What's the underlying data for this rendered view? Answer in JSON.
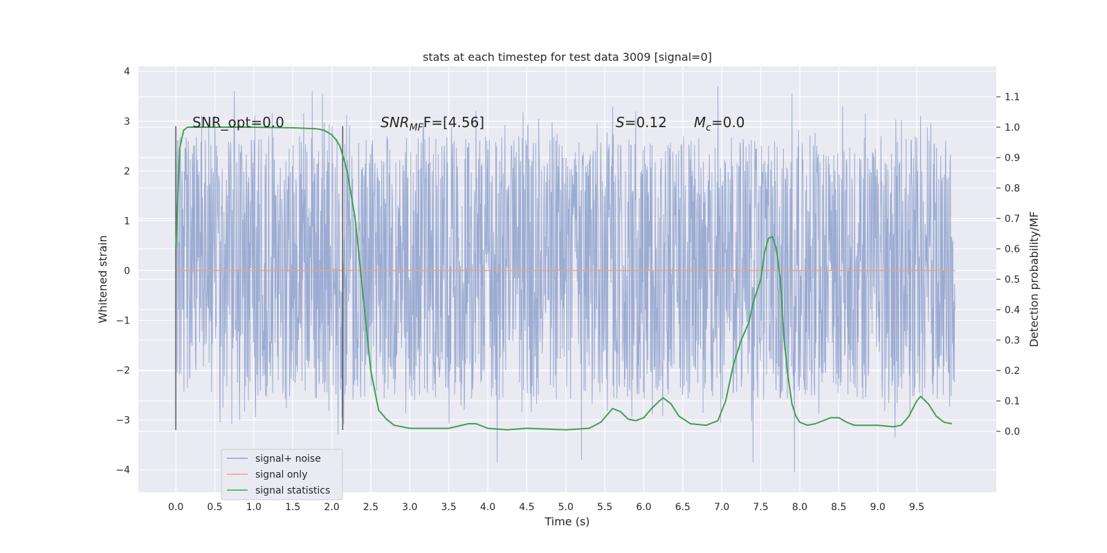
{
  "chart_data": {
    "type": "line",
    "title": "stats at each timestep for test data 3009 [signal=0]",
    "xlabel": "Time (s)",
    "ylabel": "Whitened strain",
    "y2label": "Detection probability/MF",
    "xlim": [
      -0.48,
      10.52
    ],
    "ylim": [
      -4.45,
      4.1
    ],
    "y2lim": [
      -0.2,
      1.2
    ],
    "xticks": [
      0.0,
      0.5,
      1.0,
      1.5,
      2.0,
      2.5,
      3.0,
      3.5,
      4.0,
      4.5,
      5.0,
      5.5,
      6.0,
      6.5,
      7.0,
      7.5,
      8.0,
      8.5,
      9.0,
      9.5
    ],
    "xtick_labels": [
      "0.0",
      "0.5",
      "1.0",
      "1.5",
      "2.0",
      "2.5",
      "3.0",
      "3.5",
      "4.0",
      "4.5",
      "5.0",
      "5.5",
      "6.0",
      "6.5",
      "7.0",
      "7.5",
      "8.0",
      "8.5",
      "9.0",
      "9.5"
    ],
    "yticks": [
      4,
      3,
      2,
      1,
      0,
      -1,
      -2,
      -3,
      -4
    ],
    "ytick_labels": [
      "4",
      "3",
      "2",
      "1",
      "0",
      "−1",
      "−2",
      "−3",
      "−4"
    ],
    "y2ticks": [
      1.1,
      1.0,
      0.9,
      0.8,
      0.7,
      0.6,
      0.5,
      0.4,
      0.3,
      0.2,
      0.1,
      0.0
    ],
    "y2tick_labels": [
      "1.1",
      "1.0",
      "0.9",
      "0.8",
      "0.7",
      "0.6",
      "0.5",
      "0.4",
      "0.3",
      "0.2",
      "0.1",
      "0.0"
    ],
    "grid": true,
    "legend_position": "lower-left",
    "vlines": [
      0.0,
      2.14
    ],
    "vline_range": [
      -3.2,
      2.9
    ],
    "annotations": {
      "snr_opt": "SNR_opt=0.0",
      "snr_mf_base": "SNR",
      "snr_mf_sub": "MF",
      "snr_mf_rest": "F=[4.56]",
      "s_var": "S",
      "s_rest": "=0.12",
      "mc_var": "M",
      "mc_sub": "c",
      "mc_rest": "=0.0"
    },
    "series": [
      {
        "name": "signal+ noise",
        "color": "#8da0cb",
        "axis": "left",
        "x_range": [
          0.0,
          9.99
        ],
        "envelope_outer": [
          -2.6,
          2.7
        ],
        "envelope_inner": [
          -1.4,
          1.7
        ],
        "spikes": [
          {
            "x": 0.75,
            "y": 3.6
          },
          {
            "x": 1.75,
            "y": 3.6
          },
          {
            "x": 1.88,
            "y": 3.55
          },
          {
            "x": 6.95,
            "y": 3.7
          },
          {
            "x": 0.5,
            "y": 3.1
          },
          {
            "x": 4.12,
            "y": -3.85
          },
          {
            "x": 5.2,
            "y": -3.8
          },
          {
            "x": 7.4,
            "y": -3.85
          },
          {
            "x": 7.93,
            "y": -4.05
          },
          {
            "x": 9.22,
            "y": -3.35
          },
          {
            "x": 2.08,
            "y": -3.3
          },
          {
            "x": 7.9,
            "y": 3.55
          },
          {
            "x": 8.55,
            "y": 3.3
          },
          {
            "x": 9.55,
            "y": 3.1
          },
          {
            "x": 3.85,
            "y": 3.2
          },
          {
            "x": 5.6,
            "y": 3.3
          }
        ]
      },
      {
        "name": "signal only",
        "color": "#e5a48c",
        "axis": "left",
        "x": [
          0.0,
          9.99
        ],
        "y": [
          0.0,
          0.0
        ]
      },
      {
        "name": "signal statistics",
        "color": "#3f9f4f",
        "axis": "right",
        "x": [
          0.0,
          0.05,
          0.1,
          0.15,
          0.25,
          0.5,
          1.0,
          1.5,
          1.8,
          1.9,
          2.0,
          2.05,
          2.1,
          2.15,
          2.2,
          2.3,
          2.4,
          2.5,
          2.6,
          2.7,
          2.8,
          3.0,
          3.5,
          3.75,
          3.85,
          4.0,
          4.25,
          4.5,
          5.0,
          5.3,
          5.45,
          5.55,
          5.6,
          5.7,
          5.8,
          5.9,
          6.0,
          6.1,
          6.2,
          6.25,
          6.35,
          6.45,
          6.6,
          6.8,
          6.95,
          7.05,
          7.15,
          7.25,
          7.35,
          7.4,
          7.5,
          7.55,
          7.6,
          7.65,
          7.7,
          7.75,
          7.8,
          7.85,
          7.9,
          7.95,
          8.0,
          8.1,
          8.2,
          8.3,
          8.4,
          8.5,
          8.6,
          8.7,
          8.8,
          9.0,
          9.2,
          9.3,
          9.4,
          9.5,
          9.55,
          9.65,
          9.75,
          9.85,
          9.95
        ],
        "y": [
          0.6,
          0.93,
          0.99,
          1.0,
          1.0,
          1.0,
          1.0,
          0.998,
          0.995,
          0.99,
          0.975,
          0.96,
          0.94,
          0.9,
          0.85,
          0.7,
          0.45,
          0.2,
          0.07,
          0.04,
          0.02,
          0.01,
          0.01,
          0.025,
          0.025,
          0.01,
          0.005,
          0.01,
          0.005,
          0.01,
          0.03,
          0.06,
          0.075,
          0.065,
          0.04,
          0.035,
          0.045,
          0.075,
          0.1,
          0.11,
          0.09,
          0.05,
          0.025,
          0.02,
          0.035,
          0.1,
          0.22,
          0.3,
          0.36,
          0.42,
          0.5,
          0.59,
          0.635,
          0.64,
          0.6,
          0.5,
          0.3,
          0.18,
          0.09,
          0.05,
          0.03,
          0.02,
          0.025,
          0.035,
          0.045,
          0.045,
          0.03,
          0.02,
          0.02,
          0.02,
          0.015,
          0.02,
          0.05,
          0.1,
          0.115,
          0.09,
          0.05,
          0.03,
          0.025
        ]
      }
    ]
  }
}
